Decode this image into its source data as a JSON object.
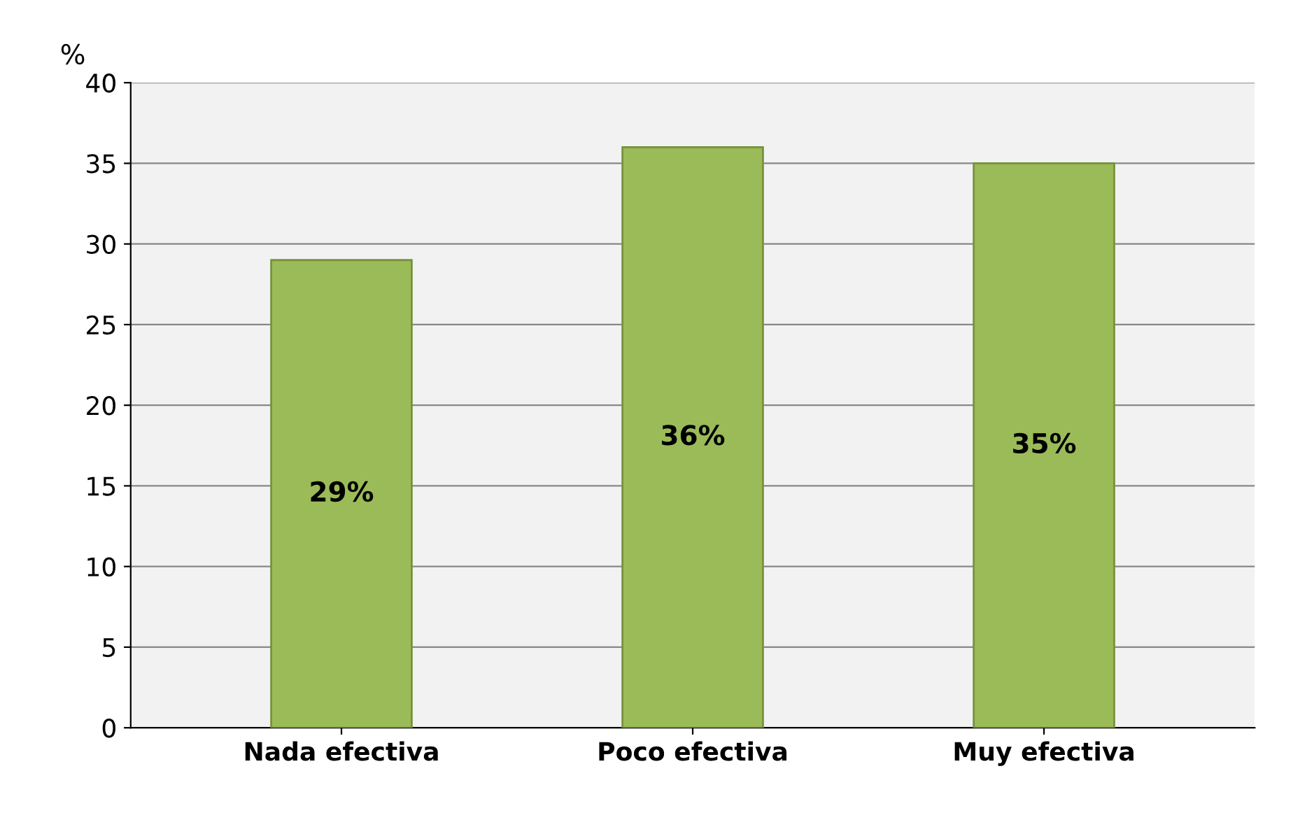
{
  "chart_data": {
    "type": "bar",
    "ylabel": "%",
    "categories": [
      "Nada efectiva",
      "Poco efectiva",
      "Muy efectiva"
    ],
    "values": [
      29,
      36,
      35
    ],
    "value_labels": [
      "29%",
      "36%",
      "35%"
    ],
    "color": "#9bbb59",
    "ylim": [
      0,
      40
    ],
    "yticks": [
      0,
      5,
      10,
      15,
      20,
      25,
      30,
      35,
      40
    ],
    "grid": "y"
  }
}
